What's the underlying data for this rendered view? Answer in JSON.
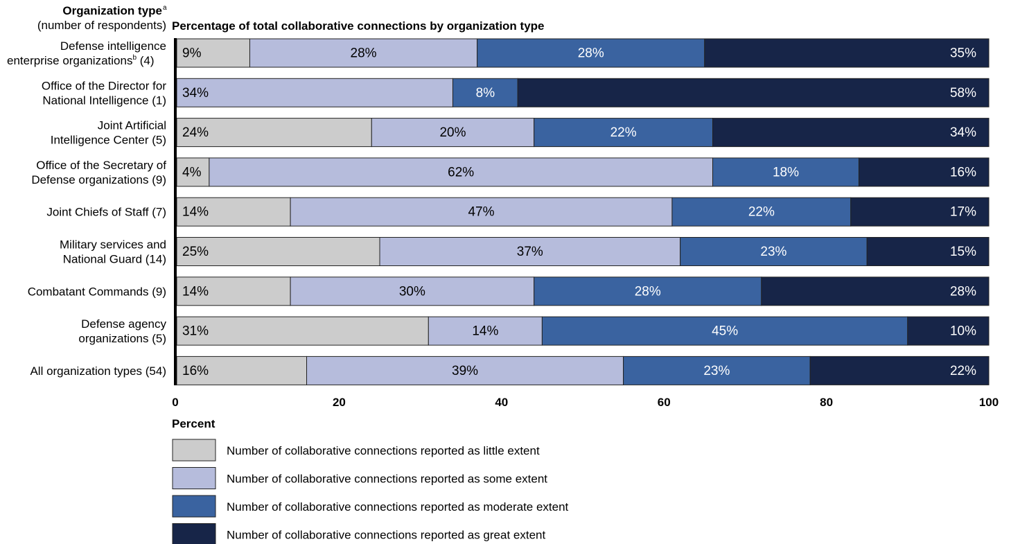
{
  "header": {
    "left_title": "Organization type",
    "left_title_sup": "a",
    "left_subtitle": "(number of respondents)",
    "chart_title": "Percentage of total collaborative connections by organization type"
  },
  "chart_data": {
    "type": "bar",
    "orientation": "horizontal",
    "stacked": true,
    "title": "Percentage of total collaborative connections by organization type",
    "xlabel": "Percent",
    "ylabel": "Organization type (number of respondents)",
    "xlim": [
      0,
      100
    ],
    "xticks": [
      "0",
      "20",
      "40",
      "60",
      "80",
      "100"
    ],
    "grid": false,
    "legend_position": "bottom",
    "categories": [
      {
        "lines": [
          "Defense intelligence",
          "enterprise organizations"
        ],
        "sup": "b",
        "suffix": " (4)"
      },
      {
        "lines": [
          "Office of the Director for",
          "National Intelligence (1)"
        ]
      },
      {
        "lines": [
          "Joint Artificial",
          "Intelligence Center (5)"
        ]
      },
      {
        "lines": [
          "Office of the Secretary of",
          "Defense organizations (9)"
        ]
      },
      {
        "lines": [
          "Joint Chiefs of Staff (7)"
        ]
      },
      {
        "lines": [
          "Military services and",
          "National Guard (14)"
        ]
      },
      {
        "lines": [
          "Combatant Commands (9)"
        ]
      },
      {
        "lines": [
          "Defense agency",
          "organizations (5)"
        ]
      },
      {
        "lines": [
          "All organization types (54)"
        ]
      }
    ],
    "series": [
      {
        "name": "Number of collaborative connections reported as little extent",
        "color": "#cccccc",
        "label_color": "#000000",
        "values": [
          9,
          0,
          24,
          4,
          14,
          25,
          14,
          31,
          16
        ],
        "labels": [
          "9%",
          "",
          "24%",
          "4%",
          "14%",
          "25%",
          "14%",
          "31%",
          "16%"
        ]
      },
      {
        "name": "Number of collaborative connections reported as some extent",
        "color": "#b6bcdc",
        "label_color": "#000000",
        "values": [
          28,
          34,
          20,
          62,
          47,
          37,
          30,
          14,
          39
        ],
        "labels": [
          "28%",
          "34%",
          "20%",
          "62%",
          "47%",
          "37%",
          "30%",
          "14%",
          "39%"
        ]
      },
      {
        "name": "Number of collaborative connections reported as moderate extent",
        "color": "#3a63a0",
        "label_color": "#ffffff",
        "values": [
          28,
          8,
          22,
          18,
          22,
          23,
          28,
          45,
          23
        ],
        "labels": [
          "28%",
          "8%",
          "22%",
          "18%",
          "22%",
          "23%",
          "28%",
          "45%",
          "23%"
        ]
      },
      {
        "name": "Number of collaborative connections reported as great extent",
        "color": "#172548",
        "label_color": "#ffffff",
        "values": [
          35,
          58,
          34,
          16,
          17,
          15,
          28,
          10,
          22
        ],
        "labels": [
          "35%",
          "58%",
          "34%",
          "16%",
          "17%",
          "15%",
          "28%",
          "10%",
          "22%"
        ]
      }
    ]
  }
}
